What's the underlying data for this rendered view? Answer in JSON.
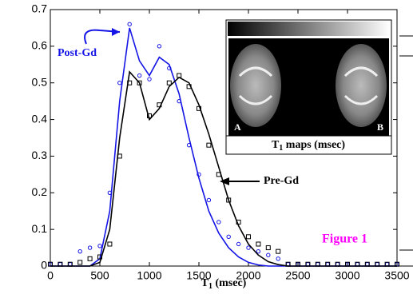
{
  "chart_data": {
    "type": "line",
    "x_label": [
      "T",
      "1",
      " (msec)"
    ],
    "inset": {
      "title": [
        "T",
        "1",
        " maps (msec)"
      ],
      "panels": [
        "A",
        "B"
      ]
    },
    "annotations": [
      {
        "text": "Figure 1",
        "color": "#ff00ff"
      }
    ],
    "x": [
      0,
      100,
      200,
      300,
      400,
      500,
      600,
      700,
      800,
      900,
      1000,
      1100,
      1200,
      1300,
      1400,
      1500,
      1600,
      1700,
      1800,
      1900,
      2000,
      2100,
      2200,
      2300,
      2400,
      2500,
      2600,
      2700,
      2800,
      2900,
      3000,
      3100,
      3200,
      3300,
      3400,
      3500
    ],
    "series": [
      {
        "name": "Post-Gd",
        "color": "#1414e6",
        "marker": "circle",
        "values": [
          0,
          0,
          0,
          0,
          0,
          0.02,
          0.15,
          0.45,
          0.65,
          0.56,
          0.52,
          0.57,
          0.55,
          0.47,
          0.35,
          0.24,
          0.15,
          0.09,
          0.05,
          0.025,
          0.01,
          0.003,
          0,
          0,
          0,
          0,
          0,
          0,
          0,
          0,
          0,
          0,
          0,
          0,
          0,
          0
        ],
        "markers": [
          0.005,
          0.005,
          0.005,
          0.04,
          0.05,
          0.055,
          0.2,
          0.5,
          0.66,
          0.52,
          0.51,
          0.6,
          0.54,
          0.45,
          0.33,
          0.25,
          0.18,
          0.12,
          0.08,
          0.06,
          0.05,
          0.04,
          0.03,
          0.02,
          0.005,
          0.005,
          0.005,
          0.005,
          0.005,
          0.005,
          0.005,
          0.005,
          0.005,
          0.005,
          0.005,
          0.005
        ]
      },
      {
        "name": "Pre-Gd",
        "color": "#000000",
        "marker": "square",
        "values": [
          0,
          0,
          0,
          0,
          0,
          0.01,
          0.1,
          0.35,
          0.53,
          0.5,
          0.4,
          0.43,
          0.49,
          0.515,
          0.5,
          0.44,
          0.36,
          0.27,
          0.18,
          0.11,
          0.06,
          0.03,
          0.012,
          0.004,
          0,
          0,
          0,
          0,
          0,
          0,
          0,
          0,
          0,
          0,
          0,
          0
        ],
        "markers": [
          0.005,
          0.005,
          0.005,
          0.01,
          0.02,
          0.025,
          0.06,
          0.3,
          0.5,
          0.5,
          0.41,
          0.44,
          0.5,
          0.52,
          0.49,
          0.43,
          0.33,
          0.25,
          0.18,
          0.12,
          0.08,
          0.06,
          0.05,
          0.04,
          0.005,
          0.005,
          0.005,
          0.005,
          0.005,
          0.005,
          0.005,
          0.005,
          0.005,
          0.005,
          0.005,
          0.005
        ]
      }
    ],
    "xlim": [
      0,
      3500
    ],
    "xticks": [
      0,
      500,
      1000,
      1500,
      2000,
      2500,
      3000,
      3500
    ],
    "ylim": [
      0,
      0.7
    ],
    "yticks": [
      0,
      0.1,
      0.2,
      0.3,
      0.4,
      0.5,
      0.6,
      0.7
    ]
  }
}
